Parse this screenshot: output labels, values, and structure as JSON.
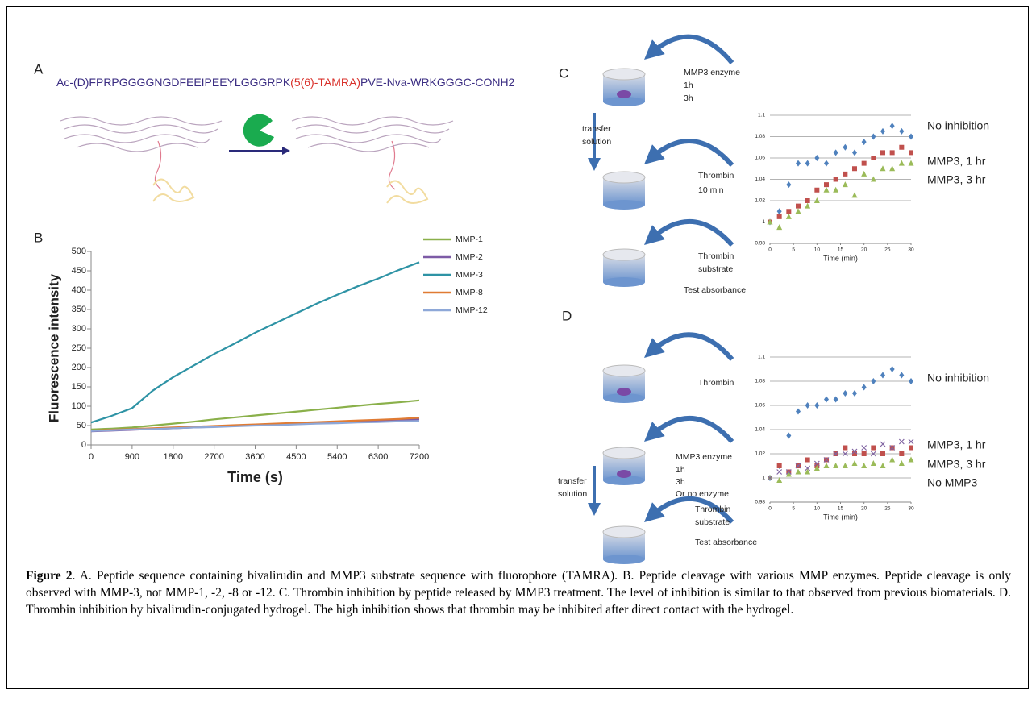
{
  "figure": {
    "panel_labels": [
      "A",
      "B",
      "C",
      "D"
    ]
  },
  "panel_a": {
    "sequence": [
      "Ac-(D)FPRPGGGGNGDFEEIPEEYLGGGRPK",
      "(5(6)-TAMRA)",
      "PVE-Nva-WRKGGGC-CONH2"
    ]
  },
  "chart_data": [
    {
      "type": "line",
      "ylabel": "Fluorescence intensity",
      "xlabel": "Time (s)",
      "x": [
        0,
        450,
        900,
        1350,
        1800,
        2250,
        2700,
        3150,
        3600,
        4050,
        4500,
        4950,
        5400,
        5850,
        6300,
        6750,
        7200
      ],
      "xlim": [
        0,
        7200
      ],
      "xticks": [
        0,
        900,
        1800,
        2700,
        3600,
        4500,
        5400,
        6300,
        7200
      ],
      "ylim": [
        0,
        500
      ],
      "yticks": [
        0,
        50,
        100,
        150,
        200,
        250,
        300,
        350,
        400,
        450,
        500
      ],
      "grid": false,
      "legend": "right",
      "series": [
        {
          "name": "MMP-1",
          "color": "#8ab04a",
          "values": [
            40,
            42,
            45,
            50,
            55,
            60,
            66,
            71,
            76,
            81,
            86,
            91,
            96,
            101,
            106,
            110,
            115
          ]
        },
        {
          "name": "MMP-2",
          "color": "#7d5ba6",
          "values": [
            35,
            37,
            39,
            41,
            43,
            45,
            47,
            49,
            51,
            53,
            55,
            57,
            59,
            61,
            63,
            64,
            66
          ]
        },
        {
          "name": "MMP-3",
          "color": "#2e93a5",
          "values": [
            58,
            75,
            95,
            140,
            175,
            205,
            235,
            262,
            290,
            315,
            340,
            365,
            388,
            410,
            430,
            452,
            472
          ]
        },
        {
          "name": "MMP-8",
          "color": "#e07b33",
          "values": [
            37,
            39,
            41,
            43,
            45,
            47,
            49,
            51,
            53,
            55,
            57,
            59,
            61,
            63,
            65,
            67,
            70
          ]
        },
        {
          "name": "MMP-12",
          "color": "#8ea8d8",
          "values": [
            36,
            38,
            40,
            41,
            43,
            45,
            46,
            48,
            50,
            51,
            53,
            55,
            56,
            58,
            59,
            61,
            62
          ]
        }
      ]
    },
    {
      "type": "scatter",
      "xlabel": "Time (min)",
      "x": [
        0,
        2,
        4,
        6,
        8,
        10,
        12,
        14,
        16,
        18,
        20,
        22,
        24,
        26,
        28,
        30
      ],
      "xlim": [
        0,
        30
      ],
      "xticks": [
        0,
        5,
        10,
        15,
        20,
        25,
        30
      ],
      "ylim": [
        0.98,
        1.1
      ],
      "yticks": [
        0.98,
        1,
        1.02,
        1.04,
        1.06,
        1.08,
        1.1
      ],
      "grid": true,
      "legend": "right",
      "series": [
        {
          "name": "No inhibition",
          "color": "#4f81bd",
          "marker": "diamond",
          "values": [
            1.0,
            1.01,
            1.035,
            1.055,
            1.055,
            1.06,
            1.055,
            1.065,
            1.07,
            1.065,
            1.075,
            1.08,
            1.085,
            1.09,
            1.085,
            1.08
          ]
        },
        {
          "name": "MMP3, 1 hr",
          "color": "#c0504d",
          "marker": "square",
          "values": [
            1.0,
            1.005,
            1.01,
            1.015,
            1.02,
            1.03,
            1.035,
            1.04,
            1.045,
            1.05,
            1.055,
            1.06,
            1.065,
            1.065,
            1.07,
            1.065
          ]
        },
        {
          "name": "MMP3, 3 hr",
          "color": "#9bbb59",
          "marker": "triangle",
          "values": [
            1.0,
            0.995,
            1.005,
            1.01,
            1.015,
            1.02,
            1.03,
            1.03,
            1.035,
            1.025,
            1.045,
            1.04,
            1.05,
            1.05,
            1.055,
            1.055
          ]
        }
      ]
    },
    {
      "type": "scatter",
      "xlabel": "Time (min)",
      "x": [
        0,
        2,
        4,
        6,
        8,
        10,
        12,
        14,
        16,
        18,
        20,
        22,
        24,
        26,
        28,
        30
      ],
      "xlim": [
        0,
        30
      ],
      "xticks": [
        0,
        5,
        10,
        15,
        20,
        25,
        30
      ],
      "ylim": [
        0.98,
        1.1
      ],
      "yticks": [
        0.98,
        1,
        1.02,
        1.04,
        1.06,
        1.08,
        1.1
      ],
      "grid": true,
      "legend": "right",
      "series": [
        {
          "name": "No inhibition",
          "color": "#4f81bd",
          "marker": "diamond",
          "values": [
            1.0,
            1.01,
            1.035,
            1.055,
            1.06,
            1.06,
            1.065,
            1.065,
            1.07,
            1.07,
            1.075,
            1.08,
            1.085,
            1.09,
            1.085,
            1.08
          ]
        },
        {
          "name": "MMP3, 1 hr",
          "color": "#c0504d",
          "marker": "square",
          "values": [
            1.0,
            1.01,
            1.005,
            1.01,
            1.015,
            1.01,
            1.015,
            1.02,
            1.025,
            1.02,
            1.02,
            1.025,
            1.02,
            1.025,
            1.02,
            1.025
          ]
        },
        {
          "name": "MMP3, 3 hr",
          "color": "#9bbb59",
          "marker": "triangle",
          "values": [
            1.0,
            0.998,
            1.003,
            1.005,
            1.005,
            1.008,
            1.01,
            1.01,
            1.01,
            1.012,
            1.01,
            1.012,
            1.01,
            1.015,
            1.012,
            1.015
          ]
        },
        {
          "name": "No MMP3",
          "color": "#8064a2",
          "marker": "x",
          "values": [
            1.0,
            1.005,
            1.005,
            1.01,
            1.008,
            1.012,
            1.015,
            1.02,
            1.02,
            1.022,
            1.025,
            1.02,
            1.028,
            1.025,
            1.03,
            1.03
          ]
        }
      ]
    }
  ],
  "diagram_c": {
    "lines": [
      "MMP3 enzyme",
      "1h",
      "3h",
      "transfer",
      "solution",
      "Thrombin",
      "10 min",
      "Thrombin",
      "substrate",
      "Test absorbance"
    ]
  },
  "diagram_d": {
    "lines": [
      "Thrombin",
      "MMP3 enzyme",
      "1h",
      "3h",
      "Or no enzyme",
      "transfer",
      "solution",
      "Thrombin",
      "substrate",
      "Test absorbance"
    ]
  },
  "caption": {
    "label": "Figure 2",
    "text": ". A. Peptide sequence containing bivalirudin and MMP3 substrate sequence with fluorophore (TAMRA).  B. Peptide cleavage with various MMP enzymes. Peptide cleavage is only observed with MMP-3, not MMP-1, -2, -8 or -12. C. Thrombin inhibition by peptide released by MMP3 treatment. The level of inhibition is similar to that observed from previous biomaterials. D. Thrombin inhibition by bivalirudin-conjugated hydrogel. The high inhibition shows that thrombin may be inhibited after direct contact with the hydrogel."
  }
}
